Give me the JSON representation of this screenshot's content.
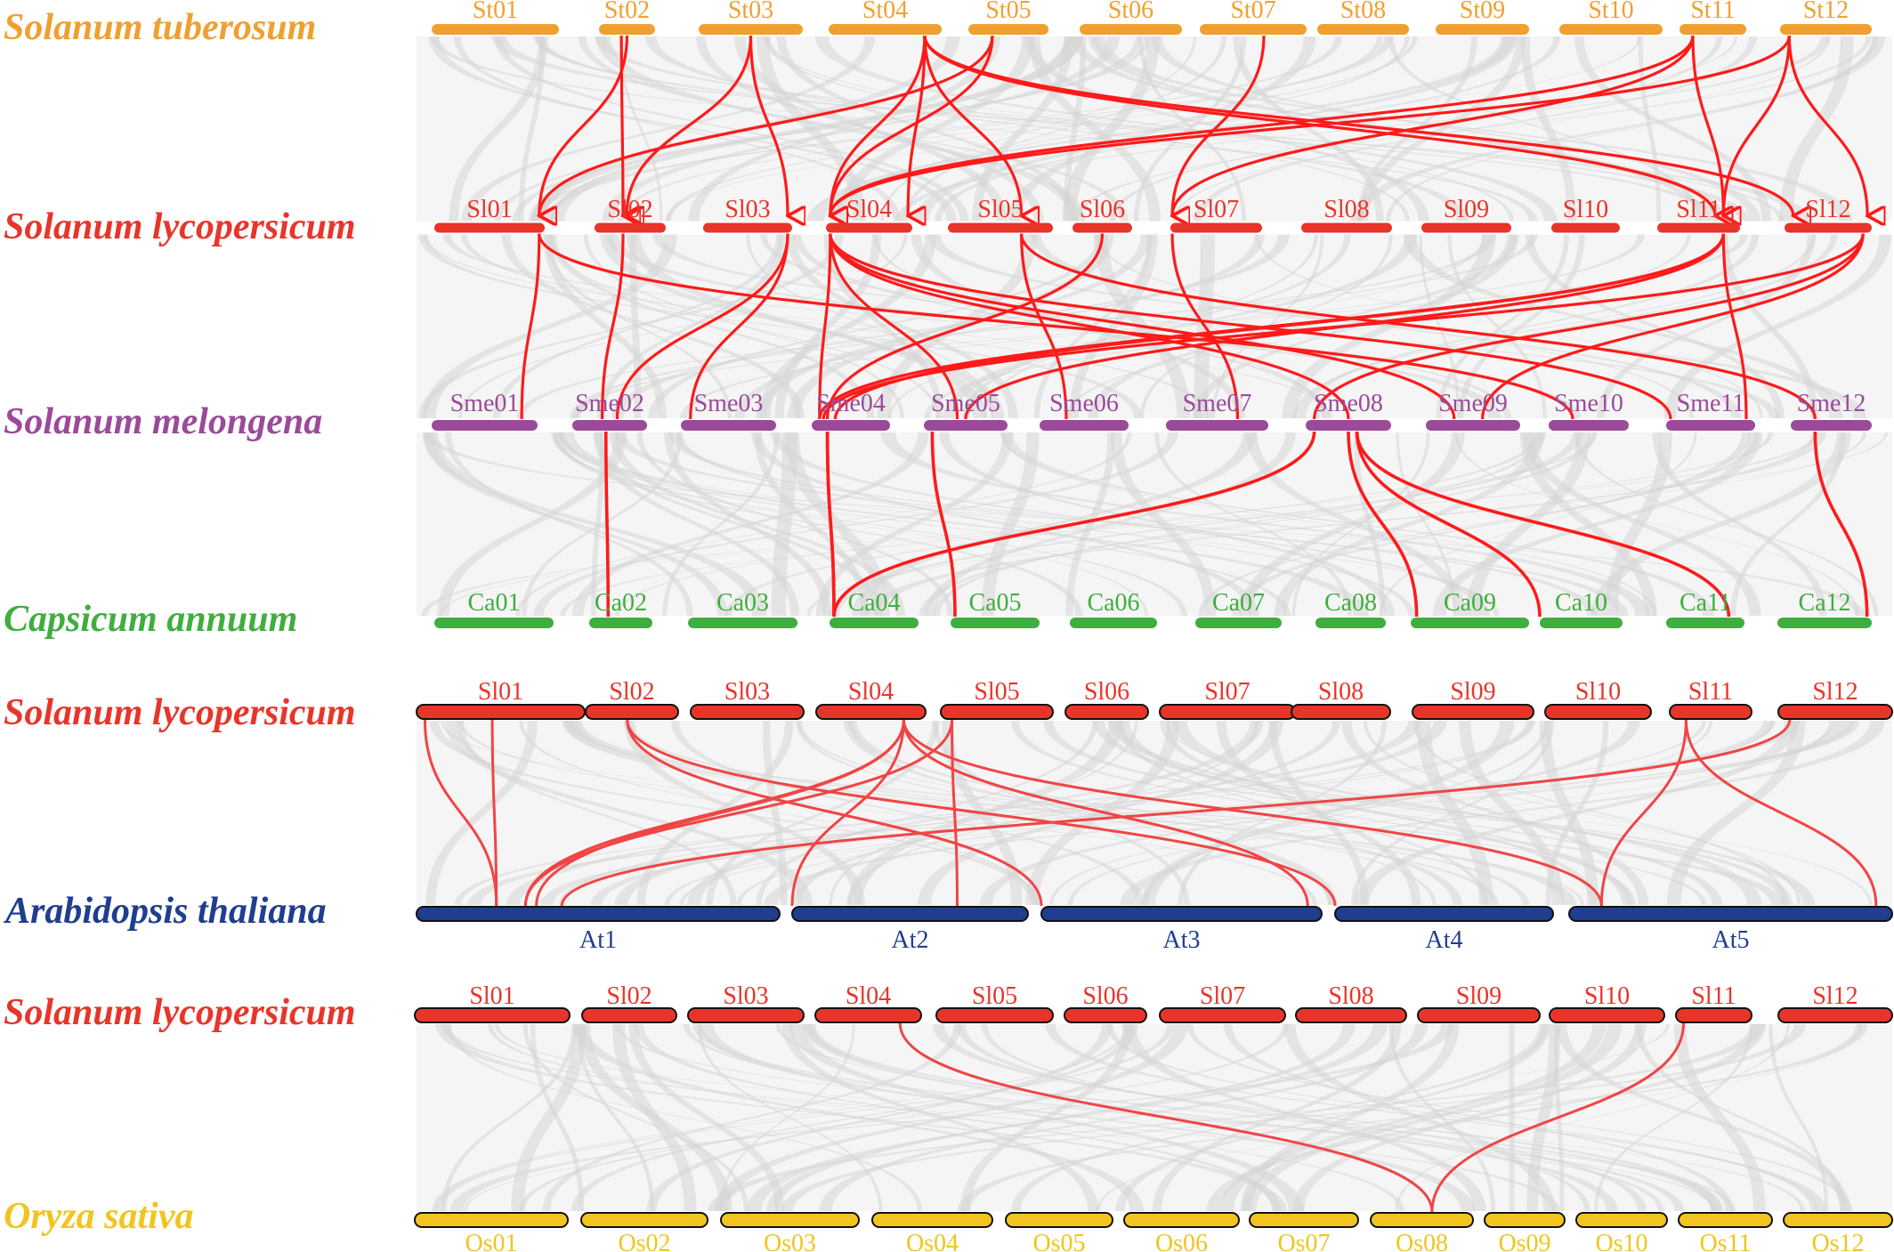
{
  "colors": {
    "tuberosum": "#f0a030",
    "lycopersicum": "#e8352a",
    "melongena": "#9b4a9a",
    "annuum": "#3fae3f",
    "thaliana": "#1f3e8f",
    "sativa": "#f2c420",
    "synteny_bg": "#e3e3e3",
    "link": "#ff1a1a",
    "link_light": "#f04545"
  },
  "panels": [
    {
      "id": "panel-a",
      "tracks": [
        {
          "id": "st",
          "species": "Solanum tuberosum",
          "color_key": "tuberosum",
          "chromosomes": [
            "St01",
            "St02",
            "St03",
            "St04",
            "St05",
            "St06",
            "St07",
            "St08",
            "St09",
            "St10",
            "St11",
            "St12"
          ]
        },
        {
          "id": "sl-a",
          "species": "Solanum lycopersicum",
          "color_key": "lycopersicum",
          "chromosomes": [
            "Sl01",
            "Sl02",
            "Sl03",
            "Sl04",
            "Sl05",
            "Sl06",
            "Sl07",
            "Sl08",
            "Sl09",
            "Sl10",
            "Sl11",
            "Sl12"
          ]
        },
        {
          "id": "sme",
          "species": "Solanum melongena",
          "color_key": "melongena",
          "chromosomes": [
            "Sme01",
            "Sme02",
            "Sme03",
            "Sme04",
            "Sme05",
            "Sme06",
            "Sme07",
            "Sme08",
            "Sme09",
            "Sme10",
            "Sme11",
            "Sme12"
          ]
        },
        {
          "id": "ca",
          "species": "Capsicum annuum",
          "color_key": "annuum",
          "chromosomes": [
            "Ca01",
            "Ca02",
            "Ca03",
            "Ca04",
            "Ca05",
            "Ca06",
            "Ca07",
            "Ca08",
            "Ca09",
            "Ca10",
            "Ca11",
            "Ca12"
          ]
        }
      ]
    },
    {
      "id": "panel-b",
      "tracks": [
        {
          "id": "sl-b",
          "species": "Solanum lycopersicum",
          "color_key": "lycopersicum",
          "chromosomes": [
            "Sl01",
            "Sl02",
            "Sl03",
            "Sl04",
            "Sl05",
            "Sl06",
            "Sl07",
            "Sl08",
            "Sl09",
            "Sl10",
            "Sl11",
            "Sl12"
          ]
        },
        {
          "id": "at",
          "species": "Arabidopsis thaliana",
          "color_key": "thaliana",
          "chromosomes": [
            "At1",
            "At2",
            "At3",
            "At4",
            "At5"
          ]
        }
      ]
    },
    {
      "id": "panel-c",
      "tracks": [
        {
          "id": "sl-c",
          "species": "Solanum lycopersicum",
          "color_key": "lycopersicum",
          "chromosomes": [
            "Sl01",
            "Sl02",
            "Sl03",
            "Sl04",
            "Sl05",
            "Sl06",
            "Sl07",
            "Sl08",
            "Sl09",
            "Sl10",
            "Sl11",
            "Sl12"
          ]
        },
        {
          "id": "os",
          "species": "Oryza sativa",
          "color_key": "sativa",
          "chromosomes": [
            "Os01",
            "Os02",
            "Os03",
            "Os04",
            "Os05",
            "Os06",
            "Os07",
            "Os08",
            "Os09",
            "Os10",
            "Os11",
            "Os12"
          ]
        }
      ]
    }
  ]
}
